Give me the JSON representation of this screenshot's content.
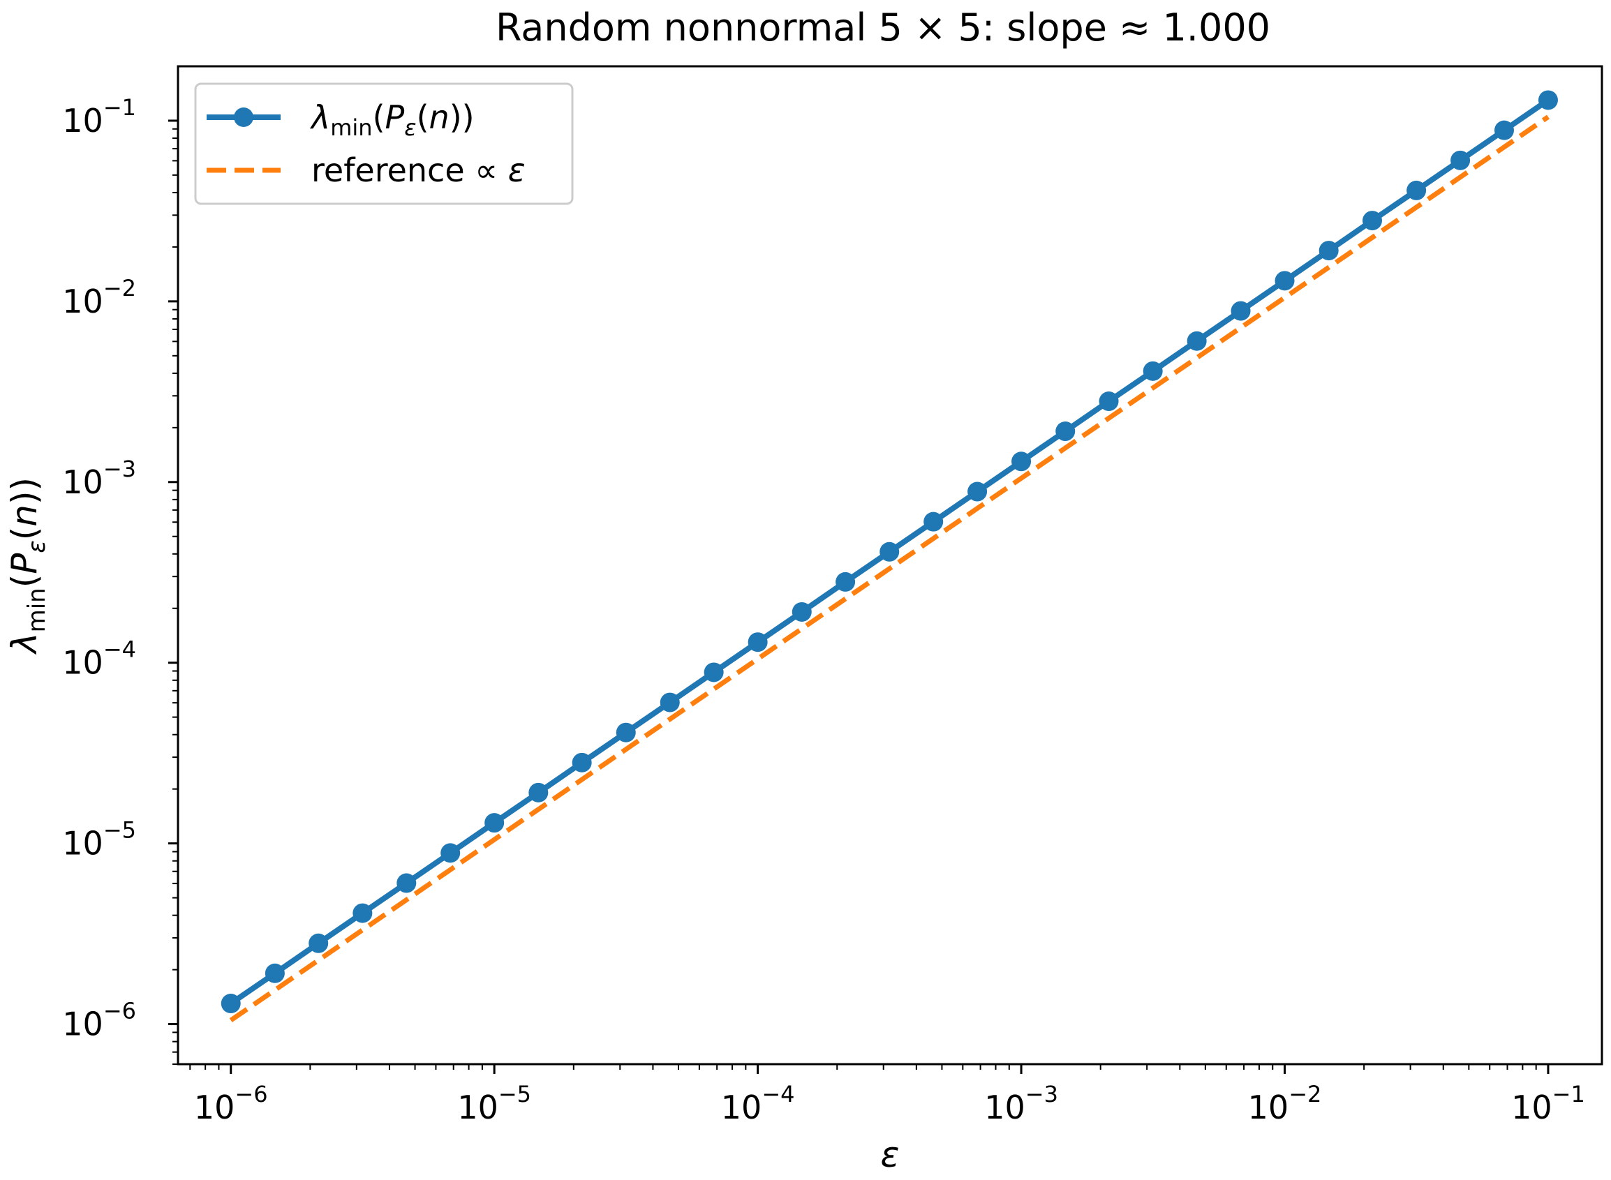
{
  "chart_data": {
    "type": "line",
    "title": "Random nonnormal 5 × 5: slope  ≈ 1.000",
    "xlabel": "ε",
    "ylabel": "λmin(Pε(n))",
    "xscale": "log",
    "yscale": "log",
    "xlim": [
      6.3e-07,
      0.16
    ],
    "ylim": [
      6e-07,
      0.2
    ],
    "xticks": [
      1e-06,
      1e-05,
      0.0001,
      0.001,
      0.01,
      0.1
    ],
    "yticks": [
      1e-06,
      1e-05,
      0.0001,
      0.001,
      0.01,
      0.1
    ],
    "xtick_labels": [
      {
        "base": "10",
        "exp": "−6"
      },
      {
        "base": "10",
        "exp": "−5"
      },
      {
        "base": "10",
        "exp": "−4"
      },
      {
        "base": "10",
        "exp": "−3"
      },
      {
        "base": "10",
        "exp": "−2"
      },
      {
        "base": "10",
        "exp": "−1"
      }
    ],
    "ytick_labels": [
      {
        "base": "10",
        "exp": "−6"
      },
      {
        "base": "10",
        "exp": "−5"
      },
      {
        "base": "10",
        "exp": "−4"
      },
      {
        "base": "10",
        "exp": "−3"
      },
      {
        "base": "10",
        "exp": "−2"
      },
      {
        "base": "10",
        "exp": "−1"
      }
    ],
    "grid": false,
    "legend_position": "top-left",
    "series": [
      {
        "name": "λmin(Pε(n))",
        "color": "#1f77b4",
        "style": "solid",
        "marker": "circle",
        "x": [
          1e-06,
          1.47e-06,
          2.15e-06,
          3.16e-06,
          4.64e-06,
          6.81e-06,
          1e-05,
          1.47e-05,
          2.15e-05,
          3.16e-05,
          4.64e-05,
          6.81e-05,
          0.0001,
          0.000147,
          0.000215,
          0.000316,
          0.000464,
          0.000681,
          0.001,
          0.00147,
          0.00215,
          0.00316,
          0.00464,
          0.00681,
          0.01,
          0.0147,
          0.0215,
          0.0316,
          0.0464,
          0.0681,
          0.1
        ],
        "y": [
          1.3e-06,
          1.91e-06,
          2.8e-06,
          4.11e-06,
          6.03e-06,
          8.85e-06,
          1.3e-05,
          1.91e-05,
          2.8e-05,
          4.11e-05,
          6.03e-05,
          8.85e-05,
          0.00013,
          0.000191,
          0.00028,
          0.000411,
          0.000603,
          0.000885,
          0.0013,
          0.00191,
          0.0028,
          0.00411,
          0.00603,
          0.00885,
          0.013,
          0.0191,
          0.028,
          0.0411,
          0.0603,
          0.0885,
          0.13
        ]
      },
      {
        "name": "reference ∝ ε",
        "color": "#ff7f0e",
        "style": "dashed",
        "marker": "none",
        "x": [
          1e-06,
          0.1
        ],
        "y": [
          1.05e-06,
          0.105
        ]
      }
    ]
  }
}
